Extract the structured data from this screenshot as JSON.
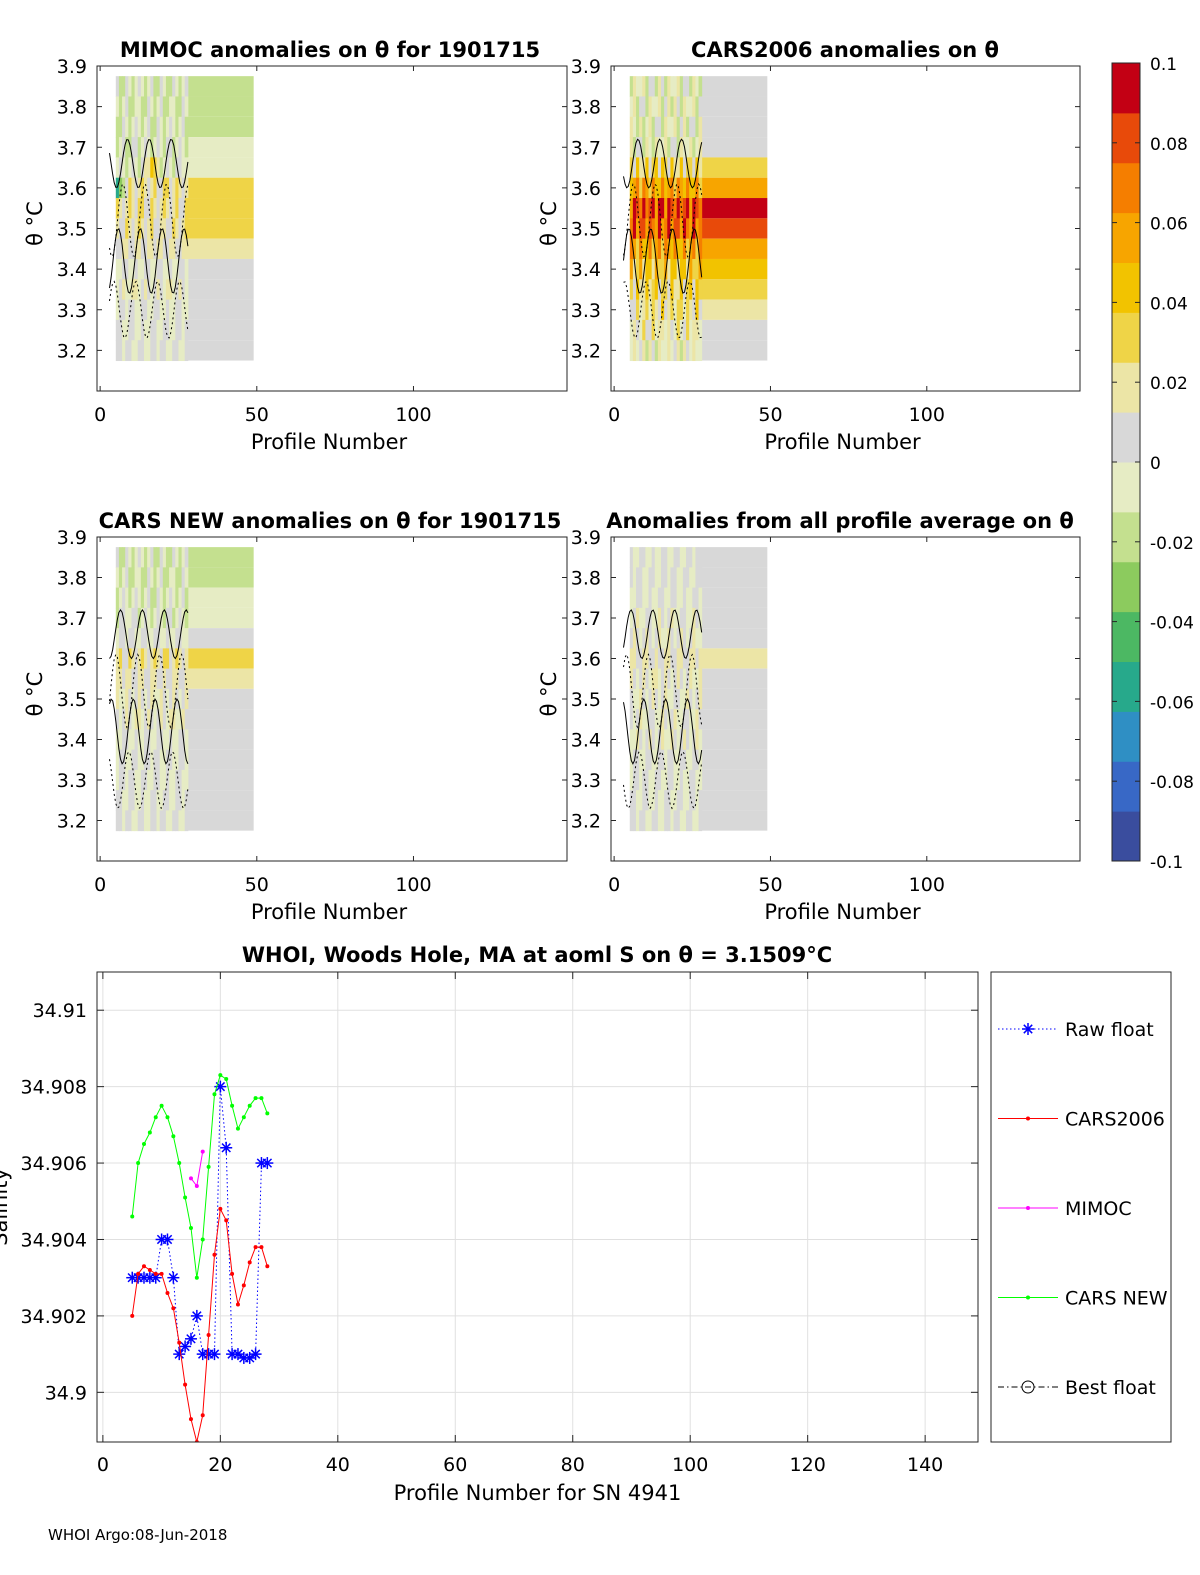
{
  "figure": {
    "footer": "WHOI Argo:08-Jun-2018"
  },
  "colorbar": {
    "range": [
      -0.1,
      0.1
    ],
    "tick_labels": [
      "0.1",
      "0.08",
      "0.06",
      "0.04",
      "0.02",
      "0",
      "-0.02",
      "-0.04",
      "-0.06",
      "-0.08",
      "-0.1"
    ],
    "colors": [
      "#3a4d9e",
      "#3868c6",
      "#2f8fc4",
      "#27a98b",
      "#4cb863",
      "#8ccb5e",
      "#c4e08f",
      "#e6ecc4",
      "#d8d8d8",
      "#ece5a6",
      "#efd447",
      "#f2c300",
      "#f7a500",
      "#f57e00",
      "#e84a0a",
      "#c30014"
    ]
  },
  "panels": [
    {
      "id": "mimoc",
      "title": "MIMOC anomalies on θ  for 1901715",
      "xlabel": "Profile Number",
      "ylabel": "θ °C",
      "xlim": [
        -1,
        149
      ],
      "ylim": [
        3.1,
        3.9
      ],
      "xticks": [
        "0",
        "50",
        "100"
      ],
      "yticks": [
        "3.9",
        "3.8",
        "3.7",
        "3.6",
        "3.5",
        "3.4",
        "3.3",
        "3.2"
      ]
    },
    {
      "id": "cars2006",
      "title": "CARS2006 anomalies on θ",
      "xlabel": "Profile Number",
      "ylabel": "θ °C",
      "xlim": [
        -1,
        149
      ],
      "ylim": [
        3.1,
        3.9
      ],
      "xticks": [
        "0",
        "50",
        "100"
      ],
      "yticks": [
        "3.9",
        "3.8",
        "3.7",
        "3.6",
        "3.5",
        "3.4",
        "3.3",
        "3.2"
      ]
    },
    {
      "id": "carsnew",
      "title": "CARS NEW anomalies on θ for 1901715",
      "xlabel": "Profile Number",
      "ylabel": "θ °C",
      "xlim": [
        -1,
        149
      ],
      "ylim": [
        3.1,
        3.9
      ],
      "xticks": [
        "0",
        "50",
        "100"
      ],
      "yticks": [
        "3.9",
        "3.8",
        "3.7",
        "3.6",
        "3.5",
        "3.4",
        "3.3",
        "3.2"
      ]
    },
    {
      "id": "allprof",
      "title": "Anomalies from all profile average on θ",
      "xlabel": "Profile Number",
      "ylabel": "θ °C",
      "xlim": [
        -1,
        149
      ],
      "ylim": [
        3.1,
        3.9
      ],
      "xticks": [
        "0",
        "50",
        "100"
      ],
      "yticks": [
        "3.9",
        "3.8",
        "3.7",
        "3.6",
        "3.5",
        "3.4",
        "3.3",
        "3.2"
      ]
    }
  ],
  "chart_data": [
    {
      "type": "heatmap",
      "panel": "mimoc",
      "title": "MIMOC anomalies on θ  for 1901715",
      "theta_levels": [
        3.85,
        3.8,
        3.75,
        3.7,
        3.65,
        3.6,
        3.55,
        3.5,
        3.45,
        3.4,
        3.35,
        3.3,
        3.25,
        3.2
      ],
      "profile_range": [
        5,
        28
      ],
      "extended_range": [
        28,
        49
      ],
      "anomaly_by_level_extended": [
        -0.015,
        -0.015,
        -0.015,
        -0.01,
        -0.005,
        0.03,
        0.03,
        0.025,
        0.02,
        0.0,
        0.01,
        0.0,
        0.0,
        0.0
      ],
      "notable_anomalies": [
        {
          "profile": 5,
          "theta": 3.6,
          "value": -0.06
        },
        {
          "profile": 16,
          "theta": 3.65,
          "value": 0.04
        }
      ]
    },
    {
      "type": "heatmap",
      "panel": "cars2006",
      "title": "CARS2006 anomalies on θ",
      "theta_levels": [
        3.85,
        3.8,
        3.75,
        3.7,
        3.65,
        3.6,
        3.55,
        3.5,
        3.45,
        3.4,
        3.35,
        3.3,
        3.25,
        3.2
      ],
      "profile_range": [
        5,
        28
      ],
      "extended_range": [
        28,
        49
      ],
      "anomaly_by_level_extended": [
        0.0,
        0.0,
        0.0,
        0.0,
        0.03,
        0.06,
        0.09,
        0.08,
        0.06,
        0.04,
        0.03,
        0.02,
        0.01,
        0.005
      ],
      "notable_anomalies": [
        {
          "profile": 20,
          "theta": 3.6,
          "value": 0.1
        }
      ]
    },
    {
      "type": "heatmap",
      "panel": "carsnew",
      "title": "CARS NEW anomalies on θ for 1901715",
      "theta_levels": [
        3.85,
        3.8,
        3.75,
        3.7,
        3.65,
        3.6,
        3.55,
        3.5,
        3.45,
        3.4,
        3.35,
        3.3,
        3.25,
        3.2
      ],
      "profile_range": [
        5,
        28
      ],
      "extended_range": [
        28,
        49
      ],
      "anomaly_by_level_extended": [
        -0.015,
        -0.015,
        -0.01,
        -0.005,
        0.0,
        0.032,
        0.02,
        0.01,
        0.01,
        0.0,
        0.0,
        0.0,
        0.0,
        0.0
      ]
    },
    {
      "type": "heatmap",
      "panel": "allprof",
      "title": "Anomalies from all profile average on θ",
      "theta_levels": [
        3.85,
        3.8,
        3.75,
        3.7,
        3.65,
        3.6,
        3.55,
        3.5,
        3.45,
        3.4,
        3.35,
        3.3,
        3.25,
        3.2
      ],
      "profile_range": [
        5,
        28
      ],
      "extended_range": [
        28,
        49
      ],
      "anomaly_by_level_extended": [
        0.0,
        0.0,
        0.0,
        0.005,
        0.01,
        0.02,
        0.01,
        0.005,
        0.005,
        0.01,
        0.0,
        0.0,
        0.0,
        0.0
      ]
    },
    {
      "type": "line",
      "panel": "salinity",
      "title": "WHOI, Woods Hole, MA at aoml S on θ = 3.1509°C",
      "xlabel": "Profile Number for SN 4941",
      "ylabel": "Salinity",
      "xlim": [
        -1,
        149
      ],
      "ylim": [
        34.8987,
        34.911
      ],
      "xticks": [
        "0",
        "20",
        "40",
        "60",
        "80",
        "100",
        "120",
        "140"
      ],
      "yticks": [
        "34.91",
        "34.908",
        "34.906",
        "34.904",
        "34.902",
        "34.9"
      ],
      "series": [
        {
          "name": "Raw float",
          "color": "#0000ff",
          "marker": "asterisk",
          "linestyle": "dotted",
          "x": [
            5,
            6,
            7,
            8,
            9,
            10,
            11,
            12,
            13,
            14,
            15,
            16,
            17,
            18,
            19,
            20,
            21,
            22,
            23,
            24,
            25,
            26,
            27,
            28
          ],
          "y": [
            34.903,
            34.903,
            34.903,
            34.903,
            34.903,
            34.904,
            34.904,
            34.903,
            34.901,
            34.9012,
            34.9014,
            34.902,
            34.901,
            34.901,
            34.901,
            34.908,
            34.9064,
            34.901,
            34.901,
            34.9009,
            34.9009,
            34.901,
            34.906,
            34.906
          ]
        },
        {
          "name": "CARS2006",
          "color": "#ff0000",
          "marker": "dot",
          "linestyle": "solid",
          "x": [
            5,
            6,
            7,
            8,
            9,
            10,
            11,
            12,
            13,
            14,
            15,
            16,
            17,
            18,
            19,
            20,
            21,
            22,
            23,
            24,
            25,
            26,
            27,
            28
          ],
          "y": [
            34.902,
            34.9031,
            34.9033,
            34.9032,
            34.9031,
            34.9031,
            34.9026,
            34.9022,
            34.9013,
            34.9002,
            34.8993,
            34.8987,
            34.8994,
            34.9015,
            34.9036,
            34.9048,
            34.9045,
            34.9031,
            34.9023,
            34.9028,
            34.9034,
            34.9038,
            34.9038,
            34.9033
          ]
        },
        {
          "name": "MIMOC",
          "color": "#ff00ff",
          "marker": "dot",
          "linestyle": "solid",
          "x": [
            15,
            16,
            17
          ],
          "y": [
            34.9056,
            34.9054,
            34.9063
          ]
        },
        {
          "name": "CARS NEW",
          "color": "#00ff00",
          "marker": "dot",
          "linestyle": "solid",
          "x": [
            5,
            6,
            7,
            8,
            9,
            10,
            11,
            12,
            13,
            14,
            15,
            16,
            17,
            18,
            19,
            20,
            21,
            22,
            23,
            24,
            25,
            26,
            27,
            28
          ],
          "y": [
            34.9046,
            34.906,
            34.9065,
            34.9068,
            34.9072,
            34.9075,
            34.9072,
            34.9067,
            34.906,
            34.9051,
            34.9043,
            34.903,
            34.904,
            34.9059,
            34.9078,
            34.9083,
            34.9082,
            34.9075,
            34.9069,
            34.9072,
            34.9075,
            34.9077,
            34.9077,
            34.9073
          ]
        },
        {
          "name": "Best float",
          "color": "#000000",
          "marker": "circle",
          "linestyle": "dashdot",
          "x": [],
          "y": []
        }
      ]
    }
  ]
}
